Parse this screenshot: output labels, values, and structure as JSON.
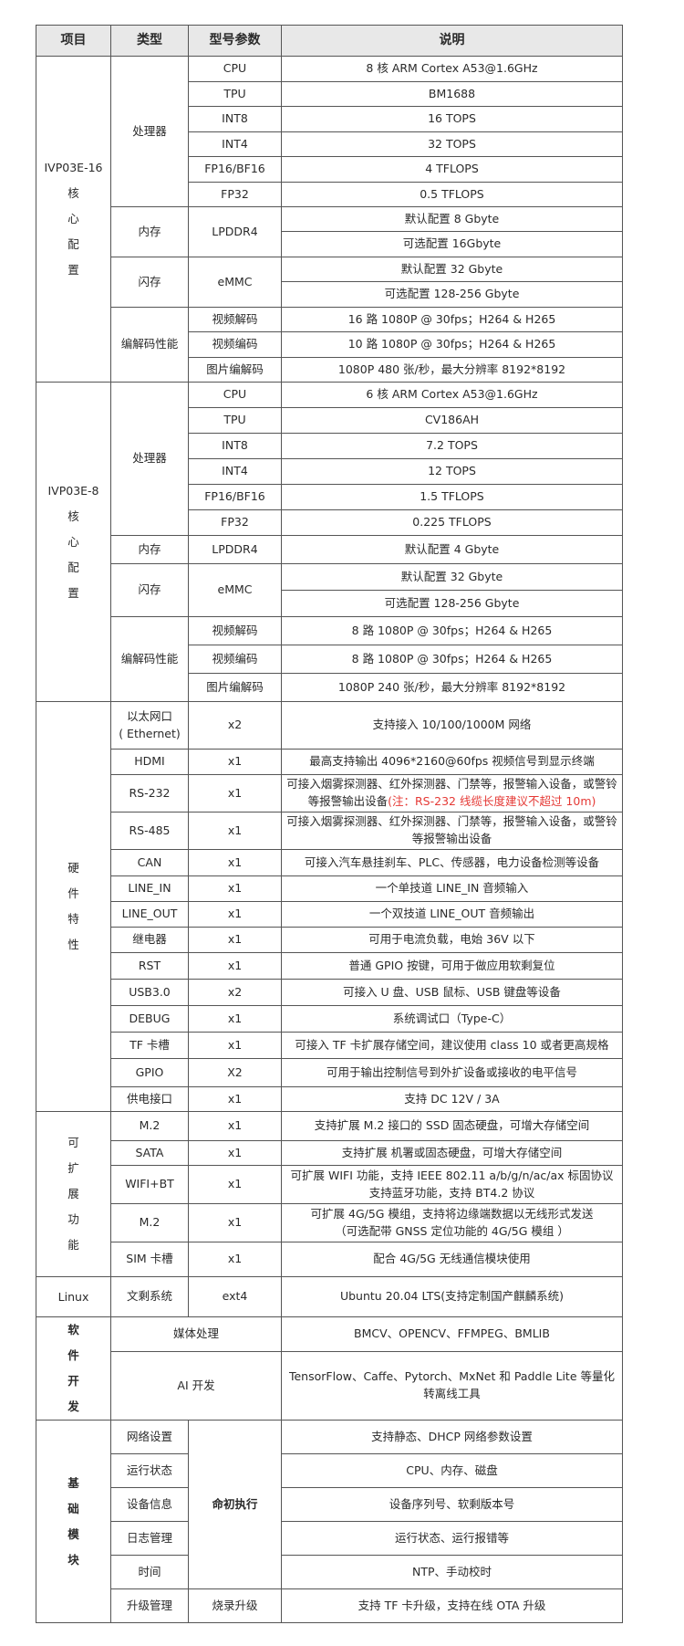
{
  "header": {
    "item": "项目",
    "type": "类型",
    "param": "型号参数",
    "desc": "说明"
  },
  "colors": {
    "header_bg": "#e8e8e8",
    "border": "#555555",
    "note": "#e53935"
  },
  "sections": [
    {
      "item": "IVP03E-16\n核\n心\n配\n置",
      "groups": [
        {
          "type": "处理器",
          "specs": [
            {
              "param": "CPU",
              "desc": [
                "8  核  ARM Cortex A53@1.6GHz"
              ]
            },
            {
              "param": "TPU",
              "desc": [
                "BM1688"
              ]
            },
            {
              "param": "INT8",
              "desc": [
                "16 TOPS"
              ]
            },
            {
              "param": "INT4",
              "desc": [
                "32 TOPS"
              ]
            },
            {
              "param": "FP16/BF16",
              "desc": [
                "4 TFLOPS"
              ]
            },
            {
              "param": "FP32",
              "desc": [
                "0.5 TFLOPS"
              ]
            }
          ]
        },
        {
          "type": "内存",
          "specs": [
            {
              "param": "LPDDR4",
              "desc": [
                "默认配置  8 Gbyte",
                "可选配置  16Gbyte"
              ]
            }
          ]
        },
        {
          "type": "闪存",
          "specs": [
            {
              "param": "eMMC",
              "desc": [
                "默认配置  32 Gbyte",
                "可选配置 128-256 Gbyte"
              ]
            }
          ]
        },
        {
          "type": "编解码性能",
          "specs": [
            {
              "param": "视频解码",
              "desc": [
                "16  路  1080P @ 30fps；H264 & H265"
              ]
            },
            {
              "param": "视频编码",
              "desc": [
                "10 路  1080P @ 30fps；H264 & H265"
              ]
            },
            {
              "param": "图片编解码",
              "desc": [
                "1080P 480  张/秒，最大分辨率 8192*8192"
              ]
            }
          ]
        }
      ]
    },
    {
      "item": "IVP03E-8\n核\n心\n配\n置",
      "groups": [
        {
          "type": "处理器",
          "specs": [
            {
              "param": "CPU",
              "desc": [
                "6  核  ARM Cortex A53@1.6GHz"
              ]
            },
            {
              "param": "TPU",
              "desc": [
                "CV186AH"
              ]
            },
            {
              "param": "INT8",
              "desc": [
                "7.2 TOPS"
              ]
            },
            {
              "param": "INT4",
              "desc": [
                "12 TOPS"
              ]
            },
            {
              "param": "FP16/BF16",
              "desc": [
                "1.5 TFLOPS"
              ]
            },
            {
              "param": "FP32",
              "desc": [
                "0.225 TFLOPS"
              ]
            }
          ]
        },
        {
          "type": "内存",
          "specs": [
            {
              "param": "LPDDR4",
              "desc": [
                "默认配置   4 Gbyte"
              ]
            }
          ]
        },
        {
          "type": "闪存",
          "specs": [
            {
              "param": "eMMC",
              "desc": [
                "默认配置  32 Gbyte",
                "可选配置 128-256 Gbyte"
              ]
            }
          ]
        },
        {
          "type": "编解码性能",
          "specs": [
            {
              "param": "视频解码",
              "desc": [
                "8  路  1080P @ 30fps；H264 & H265"
              ]
            },
            {
              "param": "视频编码",
              "desc": [
                "8  路  1080P @ 30fps；H264 & H265"
              ]
            },
            {
              "param": "图片编解码",
              "desc": [
                "1080P 240  张/秒，最大分辨率 8192*8192"
              ]
            }
          ]
        }
      ]
    },
    {
      "item": "硬\n件\n特\n性",
      "groups": [
        {
          "type": "以太网口\n( Ethernet)",
          "specs": [
            {
              "param": "x2",
              "desc": [
                "支持接入 10/100/1000M 网络"
              ]
            }
          ]
        },
        {
          "type": "HDMI",
          "specs": [
            {
              "param": "x1",
              "desc": [
                "最高支持输出 4096*2160@60fps 视频信号到显示终端"
              ]
            }
          ]
        },
        {
          "type": "RS-232",
          "specs": [
            {
              "param": "x1",
              "desc": [
                {
                  "text": "可接入烟雾探测器、红外探测器、门禁等，报警输入设备，或警铃等报警输出设备",
                  "note": "(注：RS-232  线缆长度建议不超过  10m)"
                }
              ]
            }
          ]
        },
        {
          "type": "RS-485",
          "specs": [
            {
              "param": "x1",
              "desc": [
                "可接入烟雾探测器、红外探测器、门禁等，报警输入设备，或警铃等报警输出设备"
              ]
            }
          ]
        },
        {
          "type": "CAN",
          "specs": [
            {
              "param": "x1",
              "desc": [
                "可接入汽车悬挂刹车、PLC、传感器，电力设备检测等设备"
              ]
            }
          ]
        },
        {
          "type": "LINE_IN",
          "specs": [
            {
              "param": "x1",
              "desc": [
                "一个单技道 LINE_IN 音频输入"
              ]
            }
          ]
        },
        {
          "type": "LINE_OUT",
          "specs": [
            {
              "param": "x1",
              "desc": [
                "一个双技道 LINE_OUT 音频输出"
              ]
            }
          ]
        },
        {
          "type": "继电器",
          "specs": [
            {
              "param": "x1",
              "desc": [
                "可用于电流负载，电始 36V 以下"
              ]
            }
          ]
        },
        {
          "type": "RST",
          "specs": [
            {
              "param": "x1",
              "desc": [
                "普通 GPIO 按键，可用于做应用软剩复位"
              ]
            }
          ]
        },
        {
          "type": "USB3.0",
          "specs": [
            {
              "param": "x2",
              "desc": [
                "可接入  U  盘、USB  鼠标、USB  键盘等设备"
              ]
            }
          ]
        },
        {
          "type": "DEBUG",
          "specs": [
            {
              "param": "x1",
              "desc": [
                "系统调试口（Type-C）"
              ]
            }
          ]
        },
        {
          "type": "TF 卡槽",
          "specs": [
            {
              "param": "x1",
              "desc": [
                "可接入 TF 卡扩展存储空间，建议使用 class 10 或者更高规格"
              ]
            }
          ]
        },
        {
          "type": "GPIO",
          "specs": [
            {
              "param": "X2",
              "desc": [
                "可用于输出控制信号到外扩设备或接收的电平信号"
              ]
            }
          ]
        },
        {
          "type": "供电接口",
          "specs": [
            {
              "param": "x1",
              "desc": [
                "支持 DC 12V / 3A"
              ]
            }
          ]
        }
      ]
    },
    {
      "item": "可\n扩\n展\n功\n能",
      "groups": [
        {
          "type": "M.2",
          "specs": [
            {
              "param": "x1",
              "desc": [
                "支持扩展 M.2 接口的 SSD  固态硬盘，可增大存储空间"
              ]
            }
          ]
        },
        {
          "type": "SATA",
          "specs": [
            {
              "param": "x1",
              "desc": [
                "支持扩展  机署或固态硬盘，可增大存储空间"
              ]
            }
          ]
        },
        {
          "type": "WIFI+BT",
          "specs": [
            {
              "param": "x1",
              "desc": [
                "可扩展 WIFI 功能，支持 IEEE 802.11 a/b/g/n/ac/ax  标固协议\n支持蓝牙功能，支持 BT4.2 协议"
              ]
            }
          ]
        },
        {
          "type": "M.2",
          "specs": [
            {
              "param": "x1",
              "desc": [
                "可扩展 4G/5G 模组，支持将边缘端数据以无线形式发送\n（可选配带 GNSS 定位功能的 4G/5G 模组 ）"
              ]
            }
          ]
        },
        {
          "type": "SIM 卡槽",
          "specs": [
            {
              "param": "x1",
              "desc": [
                "配合 4G/5G  无线通信模块使用"
              ]
            }
          ]
        }
      ]
    },
    {
      "item": "Linux",
      "groups": [
        {
          "type": "文剩系统",
          "specs": [
            {
              "param": "ext4",
              "desc": [
                "Ubuntu 20.04 LTS(支持定制国产麒麟系统)"
              ]
            }
          ]
        }
      ]
    },
    {
      "item": "软\n件\n开\n发",
      "bold": true,
      "groups": [
        {
          "type": "媒体处理",
          "wide": true,
          "specs": [
            {
              "desc": [
                "BMCV、OPENCV、FFMPEG、BMLIB"
              ]
            }
          ]
        },
        {
          "type": "AI 开发",
          "wide": true,
          "specs": [
            {
              "desc": [
                "TensorFlow、Caffe、Pytorch、MxNet  和  Paddle Lite 等量化转离线工具"
              ]
            }
          ]
        }
      ]
    },
    {
      "item": "基\n础\n模\n块",
      "bold": true,
      "shared_param": "命初执行",
      "groups": [
        {
          "type": "网络设置",
          "shared": true,
          "specs": [
            {
              "desc": [
                "支持静态、DHCP 网络参数设置"
              ]
            }
          ]
        },
        {
          "type": "运行状态",
          "shared": true,
          "specs": [
            {
              "desc": [
                "CPU、内存、磁盘"
              ]
            }
          ]
        },
        {
          "type": "设备信息",
          "shared": true,
          "specs": [
            {
              "desc": [
                "设备序列号、软剩版本号"
              ]
            }
          ]
        },
        {
          "type": "日志管理",
          "shared": true,
          "specs": [
            {
              "desc": [
                "运行状态、运行报错等"
              ]
            }
          ]
        },
        {
          "type": "时间",
          "shared": true,
          "specs": [
            {
              "desc": [
                "NTP、手动校时"
              ]
            }
          ]
        },
        {
          "type": "升级管理",
          "specs": [
            {
              "param": "烧录升级",
              "desc": [
                "支持 TF 卡升级，支持在线 OTA 升级"
              ]
            }
          ]
        }
      ]
    }
  ]
}
